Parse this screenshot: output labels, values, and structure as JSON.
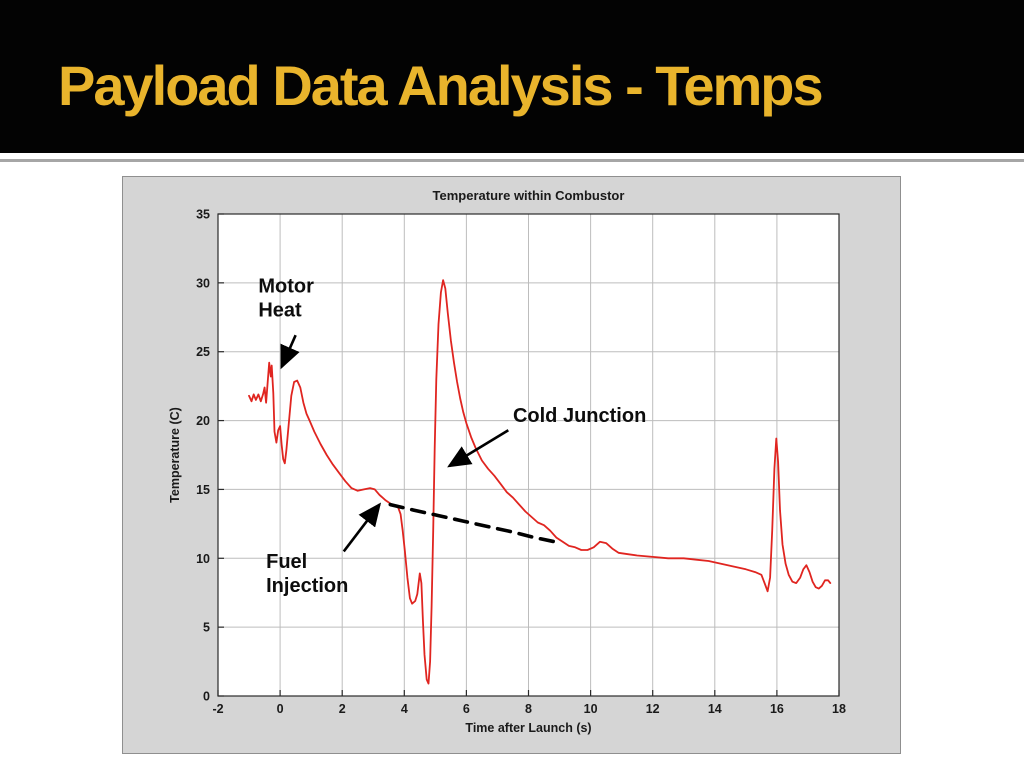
{
  "slide": {
    "title": "Payload Data Analysis - Temps"
  },
  "colors": {
    "title_text": "#e9b42c",
    "header_background": "#030303",
    "figure_background": "#d5d5d5",
    "trace_red": "#e02520",
    "trend_black": "#000000"
  },
  "chart_data": {
    "type": "line",
    "title": "Temperature within Combustor",
    "xlabel": "Time after Launch (s)",
    "ylabel": "Temperature (C)",
    "xlim": [
      -2,
      18
    ],
    "ylim": [
      0,
      35
    ],
    "xticks": [
      -2,
      0,
      2,
      4,
      6,
      8,
      10,
      12,
      14,
      16,
      18
    ],
    "yticks": [
      0,
      5,
      10,
      15,
      20,
      25,
      30,
      35
    ],
    "grid": true,
    "legend": "none",
    "series": [
      {
        "name": "combustor-temperature",
        "color": "#e02520",
        "style": "solid",
        "points": [
          [
            -1.0,
            21.8
          ],
          [
            -0.92,
            21.4
          ],
          [
            -0.85,
            21.9
          ],
          [
            -0.78,
            21.5
          ],
          [
            -0.7,
            21.9
          ],
          [
            -0.62,
            21.4
          ],
          [
            -0.55,
            21.9
          ],
          [
            -0.5,
            22.4
          ],
          [
            -0.45,
            21.3
          ],
          [
            -0.4,
            22.8
          ],
          [
            -0.35,
            24.2
          ],
          [
            -0.3,
            23.2
          ],
          [
            -0.27,
            24.0
          ],
          [
            -0.22,
            22.0
          ],
          [
            -0.18,
            19.2
          ],
          [
            -0.12,
            18.4
          ],
          [
            -0.06,
            19.3
          ],
          [
            0.0,
            19.6
          ],
          [
            0.05,
            18.2
          ],
          [
            0.1,
            17.2
          ],
          [
            0.15,
            16.9
          ],
          [
            0.2,
            17.8
          ],
          [
            0.28,
            19.8
          ],
          [
            0.36,
            21.8
          ],
          [
            0.45,
            22.8
          ],
          [
            0.55,
            22.9
          ],
          [
            0.65,
            22.4
          ],
          [
            0.75,
            21.3
          ],
          [
            0.85,
            20.5
          ],
          [
            0.95,
            20.0
          ],
          [
            1.1,
            19.2
          ],
          [
            1.3,
            18.3
          ],
          [
            1.5,
            17.5
          ],
          [
            1.7,
            16.8
          ],
          [
            1.9,
            16.2
          ],
          [
            2.1,
            15.6
          ],
          [
            2.3,
            15.1
          ],
          [
            2.5,
            14.9
          ],
          [
            2.7,
            15.0
          ],
          [
            2.9,
            15.1
          ],
          [
            3.05,
            15.0
          ],
          [
            3.2,
            14.6
          ],
          [
            3.4,
            14.2
          ],
          [
            3.6,
            13.9
          ],
          [
            3.8,
            13.7
          ],
          [
            3.88,
            13.2
          ],
          [
            3.95,
            12.0
          ],
          [
            4.02,
            10.5
          ],
          [
            4.1,
            8.6
          ],
          [
            4.18,
            7.1
          ],
          [
            4.25,
            6.7
          ],
          [
            4.35,
            6.9
          ],
          [
            4.42,
            7.4
          ],
          [
            4.5,
            8.9
          ],
          [
            4.55,
            8.2
          ],
          [
            4.6,
            5.5
          ],
          [
            4.65,
            3.0
          ],
          [
            4.72,
            1.2
          ],
          [
            4.78,
            0.9
          ],
          [
            4.83,
            2.5
          ],
          [
            4.88,
            6.5
          ],
          [
            4.93,
            12.0
          ],
          [
            4.98,
            18.0
          ],
          [
            5.03,
            23.0
          ],
          [
            5.1,
            27.0
          ],
          [
            5.18,
            29.3
          ],
          [
            5.25,
            30.2
          ],
          [
            5.32,
            29.6
          ],
          [
            5.4,
            27.8
          ],
          [
            5.5,
            25.8
          ],
          [
            5.6,
            24.2
          ],
          [
            5.7,
            22.8
          ],
          [
            5.8,
            21.6
          ],
          [
            5.9,
            20.6
          ],
          [
            6.0,
            19.8
          ],
          [
            6.15,
            18.8
          ],
          [
            6.3,
            18.0
          ],
          [
            6.5,
            17.1
          ],
          [
            6.7,
            16.5
          ],
          [
            6.9,
            16.0
          ],
          [
            7.1,
            15.4
          ],
          [
            7.3,
            14.8
          ],
          [
            7.5,
            14.4
          ],
          [
            7.7,
            13.9
          ],
          [
            7.9,
            13.4
          ],
          [
            8.1,
            13.0
          ],
          [
            8.3,
            12.6
          ],
          [
            8.5,
            12.4
          ],
          [
            8.7,
            12.0
          ],
          [
            8.9,
            11.5
          ],
          [
            9.1,
            11.2
          ],
          [
            9.3,
            10.9
          ],
          [
            9.5,
            10.8
          ],
          [
            9.7,
            10.6
          ],
          [
            9.9,
            10.6
          ],
          [
            10.1,
            10.8
          ],
          [
            10.3,
            11.2
          ],
          [
            10.5,
            11.1
          ],
          [
            10.7,
            10.7
          ],
          [
            10.9,
            10.4
          ],
          [
            11.2,
            10.3
          ],
          [
            11.5,
            10.2
          ],
          [
            12.0,
            10.1
          ],
          [
            12.5,
            10.0
          ],
          [
            13.0,
            10.0
          ],
          [
            13.4,
            9.9
          ],
          [
            13.8,
            9.8
          ],
          [
            14.2,
            9.6
          ],
          [
            14.6,
            9.4
          ],
          [
            15.0,
            9.2
          ],
          [
            15.3,
            9.0
          ],
          [
            15.5,
            8.8
          ],
          [
            15.62,
            8.1
          ],
          [
            15.7,
            7.6
          ],
          [
            15.78,
            8.6
          ],
          [
            15.85,
            12.0
          ],
          [
            15.92,
            16.5
          ],
          [
            15.98,
            18.7
          ],
          [
            16.04,
            17.0
          ],
          [
            16.1,
            13.5
          ],
          [
            16.18,
            11.0
          ],
          [
            16.28,
            9.6
          ],
          [
            16.38,
            8.8
          ],
          [
            16.5,
            8.3
          ],
          [
            16.62,
            8.2
          ],
          [
            16.75,
            8.6
          ],
          [
            16.85,
            9.2
          ],
          [
            16.95,
            9.5
          ],
          [
            17.05,
            9.0
          ],
          [
            17.15,
            8.3
          ],
          [
            17.25,
            7.9
          ],
          [
            17.35,
            7.8
          ],
          [
            17.45,
            8.0
          ],
          [
            17.55,
            8.4
          ],
          [
            17.65,
            8.4
          ],
          [
            17.72,
            8.2
          ]
        ]
      },
      {
        "name": "cold-junction-trendline",
        "color": "#000000",
        "style": "dashed",
        "points": [
          [
            3.55,
            13.9
          ],
          [
            4.3,
            13.5
          ],
          [
            5.1,
            13.1
          ],
          [
            5.9,
            12.7
          ],
          [
            6.7,
            12.3
          ],
          [
            7.5,
            11.9
          ],
          [
            8.2,
            11.5
          ],
          [
            8.85,
            11.2
          ]
        ]
      }
    ],
    "annotations": [
      {
        "name": "motor-heat",
        "lines": [
          "Motor",
          "Heat"
        ],
        "x": -0.7,
        "y": 29.3,
        "arrow": {
          "x1": 0.5,
          "y1": 26.2,
          "x2": 0.05,
          "y2": 23.9
        }
      },
      {
        "name": "fuel-injection",
        "lines": [
          "Fuel",
          "Injection"
        ],
        "x": -0.45,
        "y": 9.3,
        "arrow": {
          "x1": 2.05,
          "y1": 10.5,
          "x2": 3.2,
          "y2": 13.9
        }
      },
      {
        "name": "cold-junction",
        "lines": [
          "Cold Junction"
        ],
        "x": 7.5,
        "y": 19.9,
        "arrow": {
          "x1": 7.35,
          "y1": 19.3,
          "x2": 5.45,
          "y2": 16.7
        }
      }
    ]
  }
}
